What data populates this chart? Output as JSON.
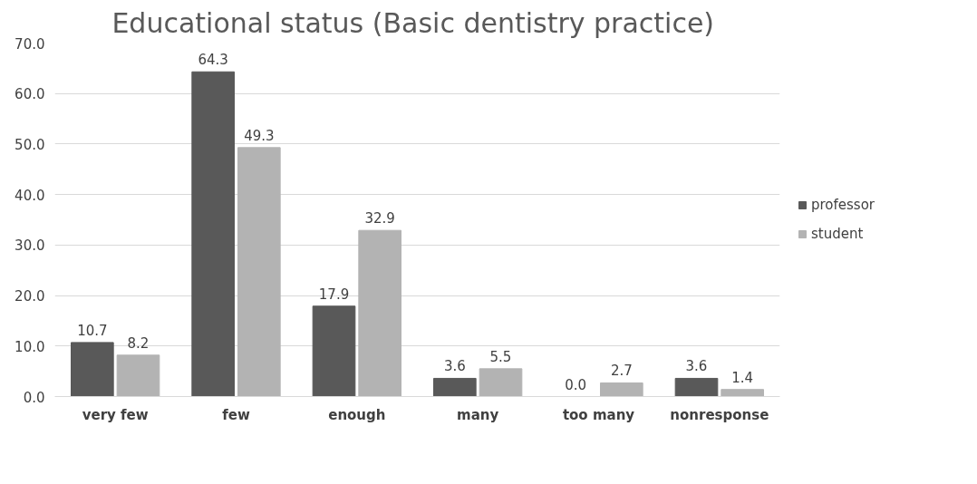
{
  "chart_data": {
    "type": "bar",
    "title": "Educational  status (Basic dentistry practice)",
    "categories": [
      "very few",
      "few",
      "enough",
      "many",
      "too many",
      "nonresponse"
    ],
    "series": [
      {
        "name": "professor",
        "color": "#595959",
        "values": [
          10.7,
          64.3,
          17.9,
          3.6,
          0.0,
          3.6
        ],
        "value_labels": [
          "10.7",
          "64.3",
          "17.9",
          "3.6",
          "0.0",
          "3.6"
        ]
      },
      {
        "name": "student",
        "color": "#b3b3b3",
        "values": [
          8.2,
          49.3,
          32.9,
          5.5,
          2.7,
          1.4
        ],
        "value_labels": [
          "8.2",
          "49.3",
          "32.9",
          "5.5",
          "2.7",
          "1.4"
        ]
      }
    ],
    "ylim": [
      0,
      70
    ],
    "yticks": [
      {
        "value": 0,
        "label": "0.0"
      },
      {
        "value": 10,
        "label": "10.0"
      },
      {
        "value": 20,
        "label": "20.0"
      },
      {
        "value": 30,
        "label": "30.0"
      },
      {
        "value": 40,
        "label": "40.0"
      },
      {
        "value": 50,
        "label": "50.0"
      },
      {
        "value": 60,
        "label": "60.0"
      },
      {
        "value": 70,
        "label": "70.0"
      }
    ],
    "grid": "y",
    "legend": "right"
  }
}
